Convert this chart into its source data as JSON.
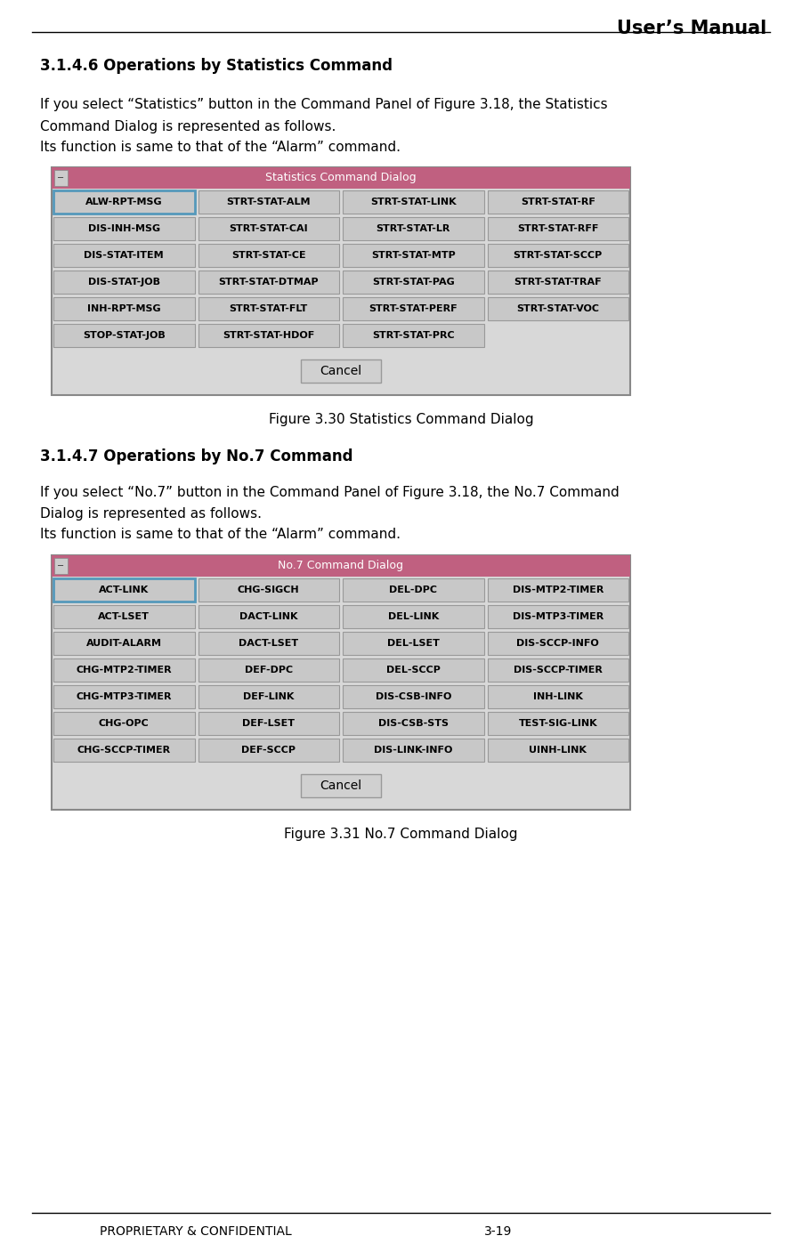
{
  "title_right": "User’s Manual",
  "footer_left": "PROPRIETARY & CONFIDENTIAL",
  "footer_right": "3-19",
  "section1_heading": "3.1.4.6 Operations by Statistics Command",
  "section1_line1": "If you select “Statistics” button in the Command Panel of Figure 3.18, the Statistics",
  "section1_line2": "Command Dialog is represented as follows.",
  "section1_line3": "Its function is same to that of the “Alarm” command.",
  "fig1_title": "Statistics Command Dialog",
  "fig1_caption": "Figure 3.30 Statistics Command Dialog",
  "fig1_rows": [
    [
      "ALW-RPT-MSG",
      "STRT-STAT-ALM",
      "STRT-STAT-LINK",
      "STRT-STAT-RF"
    ],
    [
      "DIS-INH-MSG",
      "STRT-STAT-CAI",
      "STRT-STAT-LR",
      "STRT-STAT-RFF"
    ],
    [
      "DIS-STAT-ITEM",
      "STRT-STAT-CE",
      "STRT-STAT-MTP",
      "STRT-STAT-SCCP"
    ],
    [
      "DIS-STAT-JOB",
      "STRT-STAT-DTMAP",
      "STRT-STAT-PAG",
      "STRT-STAT-TRAF"
    ],
    [
      "INH-RPT-MSG",
      "STRT-STAT-FLT",
      "STRT-STAT-PERF",
      "STRT-STAT-VOC"
    ],
    [
      "STOP-STAT-JOB",
      "STRT-STAT-HDOF",
      "STRT-STAT-PRC",
      ""
    ]
  ],
  "section2_heading": "3.1.4.7 Operations by No.7 Command",
  "section2_line1": "If you select “No.7” button in the Command Panel of Figure 3.18, the No.7 Command",
  "section2_line2": "Dialog is represented as follows.",
  "section2_line3": "Its function is same to that of the “Alarm” command.",
  "fig2_title": "No.7 Command Dialog",
  "fig2_caption": "Figure 3.31 No.7 Command Dialog",
  "fig2_rows": [
    [
      "ACT-LINK",
      "CHG-SIGCH",
      "DEL-DPC",
      "DIS-MTP2-TIMER"
    ],
    [
      "ACT-LSET",
      "DACT-LINK",
      "DEL-LINK",
      "DIS-MTP3-TIMER"
    ],
    [
      "AUDIT-ALARM",
      "DACT-LSET",
      "DEL-LSET",
      "DIS-SCCP-INFO"
    ],
    [
      "CHG-MTP2-TIMER",
      "DEF-DPC",
      "DEL-SCCP",
      "DIS-SCCP-TIMER"
    ],
    [
      "CHG-MTP3-TIMER",
      "DEF-LINK",
      "DIS-CSB-INFO",
      "INH-LINK"
    ],
    [
      "CHG-OPC",
      "DEF-LSET",
      "DIS-CSB-STS",
      "TEST-SIG-LINK"
    ],
    [
      "CHG-SCCP-TIMER",
      "DEF-SCCP",
      "DIS-LINK-INFO",
      "UINH-LINK"
    ]
  ],
  "dialog_title_bg": "#c06080",
  "dialog_title_fg": "#ffffff",
  "dialog_outer_bg": "#d8d8d8",
  "dialog_inner_bg": "#e8e8e8",
  "cell_bg": "#c8c8c8",
  "cell_border": "#999999",
  "cell_text": "#000000",
  "button_bg": "#d0d0d0",
  "button_border": "#999999",
  "button_text": "Cancel",
  "highlight_border": "#5599bb",
  "page_bg": "#ffffff",
  "header_line_color": "#000000",
  "footer_line_color": "#000000"
}
